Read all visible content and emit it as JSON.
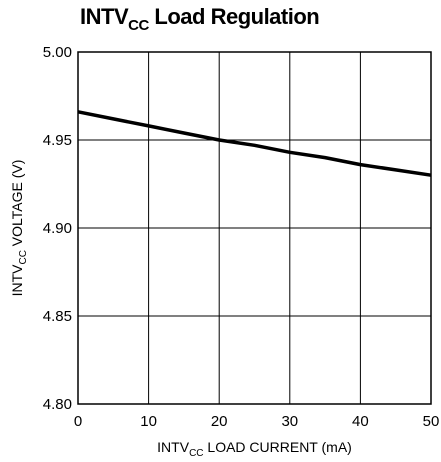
{
  "chart_data": {
    "type": "line",
    "title": {
      "main": "INTV",
      "sub": "CC",
      "rest": " Load Regulation"
    },
    "xlabel": {
      "pre": "INTV",
      "sub": "CC",
      "post": " LOAD CURRENT (mA)"
    },
    "ylabel": {
      "pre": "INTV",
      "sub": "CC",
      "post": " VOLTAGE (V)"
    },
    "xlim": [
      0,
      50
    ],
    "ylim": [
      4.8,
      5.0
    ],
    "xticks": [
      0,
      10,
      20,
      30,
      40,
      50
    ],
    "yticks": [
      4.8,
      4.85,
      4.9,
      4.95,
      5.0
    ],
    "ytick_labels": [
      "4.80",
      "4.85",
      "4.90",
      "4.95",
      "5.00"
    ],
    "grid": true,
    "series": [
      {
        "x": [
          0,
          5,
          10,
          15,
          20,
          25,
          30,
          35,
          40,
          45,
          50
        ],
        "values": [
          4.966,
          4.962,
          4.958,
          4.954,
          4.95,
          4.947,
          4.943,
          4.94,
          4.936,
          4.933,
          4.93
        ]
      }
    ]
  }
}
